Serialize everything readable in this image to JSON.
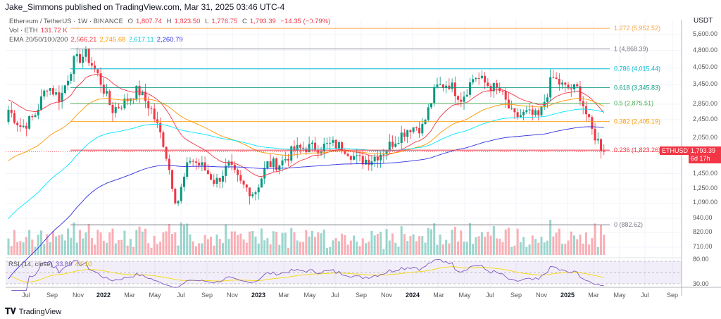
{
  "header": {
    "published": "Jake_Simmons published on TradingView.com, Mar 31, 2025 03:46 UTC-4"
  },
  "legend": {
    "symbol": "Ethereum / TetherUS · 1W · BINANCE",
    "o_label": "O",
    "o": "1,807.74",
    "h_label": "H",
    "h": "1,823.50",
    "l_label": "L",
    "l": "1,776.75",
    "c_label": "C",
    "c": "1,793.39",
    "change": "−14.35 (−0.79%)",
    "vol_label": "Vol · ETH",
    "vol": "131.72 K",
    "ema_label": "EMA 20/50/100/200",
    "ema20": "2,566.21",
    "ema50": "2,745.68",
    "ema100": "2,617.11",
    "ema200": "2,260.79",
    "rsi_label": "RSI (14, close)",
    "rsi": "33.89",
    "rsi_ma": "43.10"
  },
  "colors": {
    "up": "#089981",
    "down": "#f23645",
    "ema20": "#f23645",
    "ema50": "#ff9800",
    "ema100": "#00e5ff",
    "ema200": "#2f2fe0",
    "rsi": "#7e57c2",
    "rsi_ma": "#f5d90a"
  },
  "price_scale": {
    "currency": "USDT",
    "ticks": [
      "5,600.00",
      "4,800.00",
      "4,050.00",
      "3,450.00",
      "2,850.00",
      "2,450.00",
      "2,050.00",
      "1,450.00",
      "1,250.00",
      "1,090.00",
      "940.00",
      "820.00",
      "710.00"
    ],
    "rsi_ticks": [
      "80.00",
      "30.00"
    ],
    "last_symbol": "ETHUSDT",
    "last_price": "1,793.39",
    "countdown": "6d 17h"
  },
  "time_axis": [
    "Jul",
    "Sep",
    "Nov",
    "2022",
    "Mar",
    "May",
    "Jul",
    "Sep",
    "Nov",
    "2023",
    "Mar",
    "May",
    "Jul",
    "Sep",
    "Nov",
    "2024",
    "Mar",
    "May",
    "Jul",
    "Sep",
    "Nov",
    "2025",
    "Mar",
    "May",
    "Jul",
    "Sep"
  ],
  "footer": {
    "brand": "TradingView"
  },
  "chart_data": {
    "type": "candlestick",
    "scale": "log",
    "timeframe": "1W",
    "monthly_closes": {
      "dates": [
        "2021-05",
        "2021-06",
        "2021-07",
        "2021-08",
        "2021-09",
        "2021-10",
        "2021-11",
        "2021-12",
        "2022-01",
        "2022-02",
        "2022-03",
        "2022-04",
        "2022-05",
        "2022-06",
        "2022-07",
        "2022-08",
        "2022-09",
        "2022-10",
        "2022-11",
        "2022-12",
        "2023-01",
        "2023-02",
        "2023-03",
        "2023-04",
        "2023-05",
        "2023-06",
        "2023-07",
        "2023-08",
        "2023-09",
        "2023-10",
        "2023-11",
        "2023-12",
        "2024-01",
        "2024-02",
        "2024-03",
        "2024-04",
        "2024-05",
        "2024-06",
        "2024-07",
        "2024-08",
        "2024-09",
        "2024-10",
        "2024-11",
        "2024-12",
        "2025-01",
        "2025-02",
        "2025-03"
      ],
      "values": [
        2700,
        2270,
        2530,
        3430,
        3000,
        4290,
        4630,
        3680,
        2690,
        2920,
        3280,
        2730,
        1940,
        1070,
        1680,
        1550,
        1330,
        1570,
        1300,
        1200,
        1590,
        1600,
        1820,
        1870,
        1870,
        1930,
        1860,
        1650,
        1670,
        1810,
        2050,
        2280,
        2280,
        3340,
        3500,
        3010,
        3760,
        3440,
        3230,
        2510,
        2600,
        2510,
        3700,
        3330,
        3300,
        2240,
        1793
      ]
    },
    "fib_levels": [
      {
        "label": "1.272 (5,952.52)",
        "ratio": 1.272,
        "price": 5952.52,
        "color": "#f7a74a"
      },
      {
        "label": "1 (4,868.39)",
        "ratio": 1,
        "price": 4868.39,
        "color": "#787b86"
      },
      {
        "label": "0.786 (4,015.44)",
        "ratio": 0.786,
        "price": 4015.44,
        "color": "#00bcd4"
      },
      {
        "label": "0.618 (3,345.83)",
        "ratio": 0.618,
        "price": 3345.83,
        "color": "#089981"
      },
      {
        "label": "0.5 (2,875.51)",
        "ratio": 0.5,
        "price": 2875.51,
        "color": "#4caf50"
      },
      {
        "label": "0.382 (2,405.19)",
        "ratio": 0.382,
        "price": 2405.19,
        "color": "#ff9800"
      },
      {
        "label": "0.236 (1,823.26)",
        "ratio": 0.236,
        "price": 1823.26,
        "color": "#f23645"
      },
      {
        "label": "0 (882.62)",
        "ratio": 0,
        "price": 882.62,
        "color": "#787b86"
      }
    ]
  }
}
